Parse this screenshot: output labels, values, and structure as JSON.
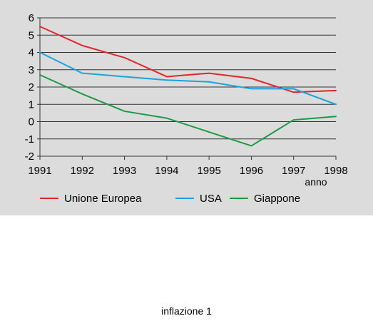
{
  "caption": "inflazione 1",
  "chart_data": {
    "type": "line",
    "title": "",
    "xlabel": "anno",
    "ylabel": "",
    "x": [
      1991,
      1992,
      1993,
      1994,
      1995,
      1996,
      1997,
      1998
    ],
    "xlim": [
      1991,
      1998
    ],
    "ylim": [
      -2,
      6
    ],
    "yticks": [
      -2,
      -1,
      0,
      1,
      2,
      3,
      4,
      5,
      6
    ],
    "grid": "horizontal",
    "legend_position": "bottom",
    "background": "#dcdcdc",
    "series": [
      {
        "name": "Unione Europea",
        "color": "#e2262b",
        "values": [
          5.5,
          4.4,
          3.7,
          2.6,
          2.8,
          2.5,
          1.7,
          1.8
        ]
      },
      {
        "name": "USA",
        "color": "#1aa3dd",
        "values": [
          4.0,
          2.8,
          2.6,
          2.4,
          2.3,
          1.9,
          1.9,
          1.0
        ]
      },
      {
        "name": "Giappone",
        "color": "#1e9a45",
        "values": [
          2.7,
          1.6,
          0.6,
          0.2,
          -0.6,
          -1.4,
          0.1,
          0.3
        ]
      }
    ]
  }
}
